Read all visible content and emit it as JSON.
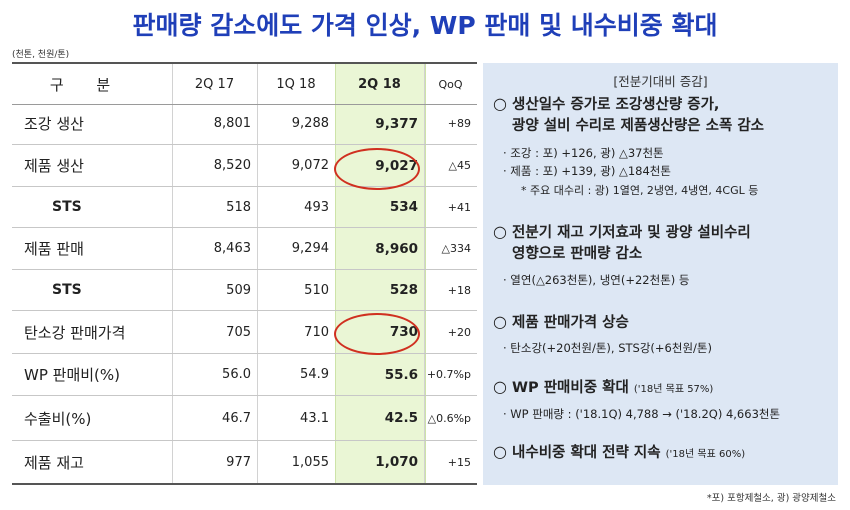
{
  "title": "판매량 감소에도 가격 인상, WP 판매 및 내수비중 확대",
  "unit_note": "(천톤, 천원/톤)",
  "table": {
    "headers": [
      "구 분",
      "2Q 17",
      "1Q 18",
      "2Q 18",
      "QoQ"
    ],
    "rows": [
      {
        "label": "조강 생산",
        "v1": "8,801",
        "v2": "9,288",
        "v3": "9,377",
        "v4": "+89"
      },
      {
        "label": "제품 생산",
        "v1": "8,520",
        "v2": "9,072",
        "v3": "9,027",
        "v4": "△45"
      },
      {
        "label": "STS",
        "v1": "518",
        "v2": "493",
        "v3": "534",
        "v4": "+41"
      },
      {
        "label": "제품 판매",
        "v1": "8,463",
        "v2": "9,294",
        "v3": "8,960",
        "v4": "△334"
      },
      {
        "label": "STS",
        "v1": "509",
        "v2": "510",
        "v3": "528",
        "v4": "+18"
      },
      {
        "label": "탄소강 판매가격",
        "v1": "705",
        "v2": "710",
        "v3": "730",
        "v4": "+20"
      },
      {
        "label": "WP 판매비(%)",
        "v1": "56.0",
        "v2": "54.9",
        "v3": "55.6",
        "v4": "+0.7%p"
      },
      {
        "label": "수출비(%)",
        "v1": "46.7",
        "v2": "43.1",
        "v3": "42.5",
        "v4": "△0.6%p"
      },
      {
        "label": "제품 재고",
        "v1": "977",
        "v2": "1,055",
        "v3": "1,070",
        "v4": "+15"
      }
    ]
  },
  "panel": {
    "title": "[전분기대비 증감]",
    "bullet": "○",
    "s1_main_1": "생산일수 증가로 조강생산량 증가,",
    "s1_main_2": "광양 설비 수리로 제품생산량은 소폭 감소",
    "s1_sub_1": "· 조강 : 포) +126,  광) △37천톤",
    "s1_sub_2": "· 제품 : 포) +139,  광) △184천톤",
    "s1_note": "* 주요 대수리 : 광) 1열연, 2냉연, 4냉연, 4CGL 등",
    "s2_main_1": "전분기 재고 기저효과 및 광양 설비수리",
    "s2_main_2": "영향으로 판매량 감소",
    "s2_sub_1": "· 열연(△263천톤), 냉연(+22천톤) 등",
    "s3_main": "제품 판매가격 상승",
    "s3_sub": "· 탄소강(+20천원/톤), STS강(+6천원/톤)",
    "s4_main": "WP 판매비중 확대",
    "s4_small": "('18년 목표 57%)",
    "s4_sub": "· WP 판매량 : ('18.1Q) 4,788 → ('18.2Q) 4,663천톤",
    "s5_main": "내수비중 확대 전략 지속",
    "s5_small": "('18년 목표 60%)"
  },
  "footer": "*포) 포항제철소, 광) 광양제철소",
  "colors": {
    "title": "#1f3fb8",
    "highlight_col": "#eaf6d5",
    "panel_bg": "#dde7f4",
    "circle": "#d03020"
  }
}
